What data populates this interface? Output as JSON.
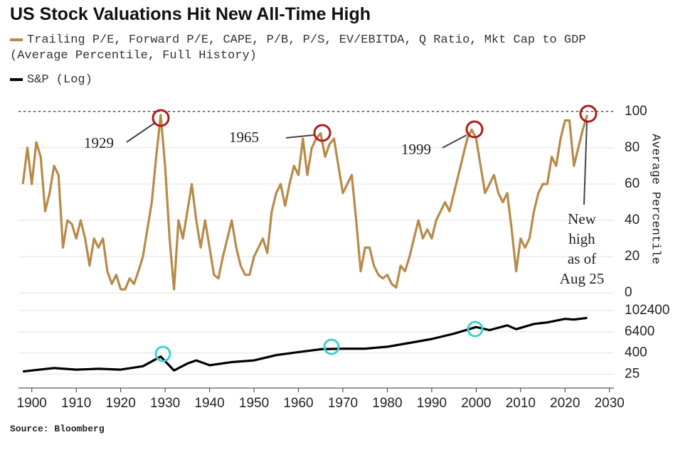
{
  "chart_data": [
    {
      "type": "line",
      "title": "US Stock Valuations Hit New All-Time High",
      "series": [
        {
          "name": "Trailing P/E, Forward P/E, CAPE, P/B, P/S, EV/EBITDA, Q Ratio, Mkt Cap to GDP (Average Percentile, Full History)",
          "color": "#b88a4a",
          "x": [
            1898,
            1899,
            1900,
            1901,
            1902,
            1903,
            1904,
            1905,
            1906,
            1907,
            1908,
            1909,
            1910,
            1911,
            1912,
            1913,
            1914,
            1915,
            1916,
            1917,
            1918,
            1919,
            1920,
            1921,
            1922,
            1923,
            1924,
            1925,
            1926,
            1927,
            1928,
            1929,
            1930,
            1931,
            1932,
            1933,
            1934,
            1935,
            1936,
            1937,
            1938,
            1939,
            1940,
            1941,
            1942,
            1943,
            1944,
            1945,
            1946,
            1947,
            1948,
            1949,
            1950,
            1951,
            1952,
            1953,
            1954,
            1955,
            1956,
            1957,
            1958,
            1959,
            1960,
            1961,
            1962,
            1963,
            1964,
            1965,
            1966,
            1967,
            1968,
            1969,
            1970,
            1971,
            1972,
            1973,
            1974,
            1975,
            1976,
            1977,
            1978,
            1979,
            1980,
            1981,
            1982,
            1983,
            1984,
            1985,
            1986,
            1987,
            1988,
            1989,
            1990,
            1991,
            1992,
            1993,
            1994,
            1995,
            1996,
            1997,
            1998,
            1999,
            2000,
            2001,
            2002,
            2003,
            2004,
            2005,
            2006,
            2007,
            2008,
            2009,
            2010,
            2011,
            2012,
            2013,
            2014,
            2015,
            2016,
            2017,
            2018,
            2019,
            2020,
            2021,
            2022,
            2023,
            2024,
            2025
          ],
          "values": [
            60,
            80,
            60,
            83,
            75,
            45,
            55,
            70,
            65,
            25,
            40,
            38,
            30,
            40,
            30,
            15,
            30,
            25,
            30,
            12,
            5,
            10,
            2,
            2,
            8,
            5,
            12,
            20,
            35,
            50,
            75,
            98,
            70,
            30,
            2,
            40,
            30,
            45,
            60,
            40,
            25,
            40,
            25,
            10,
            8,
            20,
            30,
            40,
            25,
            15,
            10,
            10,
            20,
            25,
            30,
            22,
            45,
            55,
            60,
            48,
            60,
            70,
            65,
            85,
            65,
            80,
            85,
            88,
            75,
            82,
            85,
            70,
            55,
            60,
            65,
            40,
            12,
            25,
            25,
            15,
            10,
            8,
            10,
            5,
            3,
            15,
            12,
            20,
            30,
            40,
            30,
            35,
            30,
            40,
            45,
            50,
            45,
            55,
            65,
            75,
            85,
            90,
            85,
            70,
            55,
            60,
            65,
            55,
            50,
            55,
            35,
            12,
            30,
            25,
            30,
            45,
            55,
            60,
            60,
            75,
            70,
            85,
            95,
            95,
            70,
            80,
            90,
            98
          ]
        }
      ],
      "xlim": [
        1897,
        2031
      ],
      "ylim": [
        -5,
        105
      ],
      "yticks": [
        0,
        20,
        40,
        60,
        80,
        100
      ],
      "hline": 100,
      "ylabel": "Average Percentile",
      "grid": true,
      "annotations": [
        "1929",
        "1965",
        "1999",
        [
          "New",
          "high",
          "as of",
          "Aug 25"
        ]
      ]
    },
    {
      "type": "line",
      "log_scale": true,
      "series": [
        {
          "name": "S&P (Log)",
          "color": "#000000",
          "x": [
            1898,
            1900,
            1905,
            1910,
            1915,
            1920,
            1925,
            1929,
            1932,
            1935,
            1937,
            1940,
            1945,
            1950,
            1955,
            1960,
            1965,
            1970,
            1975,
            1980,
            1985,
            1990,
            1995,
            2000,
            2003,
            2007,
            2009,
            2013,
            2016,
            2020,
            2022,
            2025
          ],
          "values": [
            35,
            40,
            55,
            45,
            50,
            45,
            70,
            250,
            40,
            100,
            150,
            80,
            120,
            150,
            300,
            450,
            650,
            700,
            700,
            900,
            1500,
            2500,
            5000,
            12000,
            8000,
            15000,
            9000,
            18000,
            22000,
            35000,
            32000,
            40000
          ]
        }
      ],
      "xlim": [
        1897,
        2031
      ],
      "ylim": [
        4,
        200000
      ],
      "yticks": [
        25,
        400,
        6400,
        102400
      ],
      "xticks": [
        1900,
        1910,
        1920,
        1930,
        1940,
        1950,
        1960,
        1970,
        1980,
        1990,
        2000,
        2010,
        2020,
        2030
      ],
      "grid": true
    }
  ],
  "source": "Source: Bloomberg"
}
